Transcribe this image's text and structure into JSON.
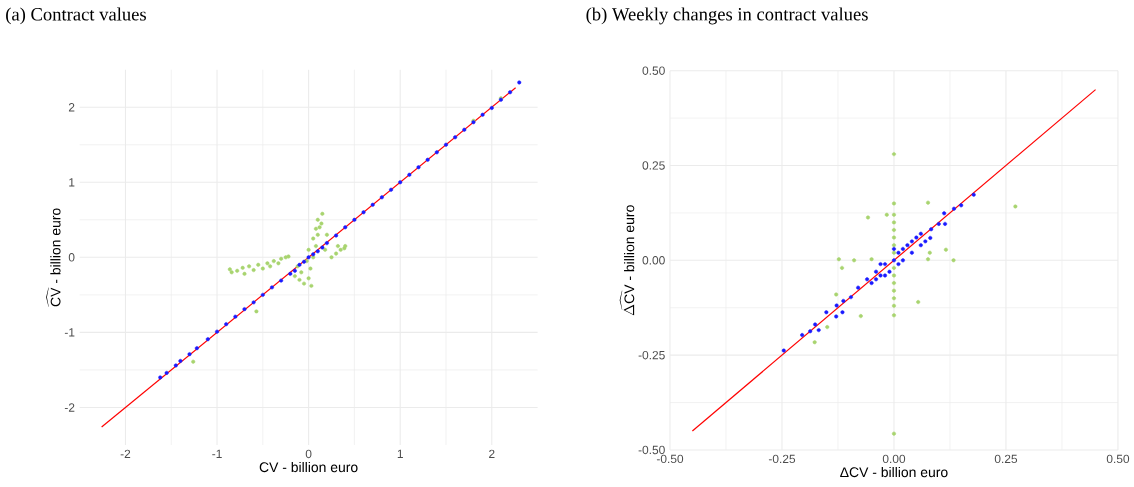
{
  "chart_data": [
    {
      "type": "scatter",
      "title": "(a) Contract values",
      "xlabel": "CV - billion euro",
      "ylabel": "\\widehat{\\mathrm{CV}}\\mbox{ - billion euro}",
      "xlim": [
        -2.5,
        2.5
      ],
      "ylim": [
        -2.5,
        2.5
      ],
      "xticks": [
        -2,
        -1,
        0,
        1,
        2
      ],
      "yticks": [
        -2,
        -1,
        0,
        1,
        2
      ],
      "grid": true,
      "series": [
        {
          "marker": "circle",
          "color": "#a8d46f",
          "x": [
            -0.86,
            -0.84,
            -0.78,
            -0.72,
            -0.7,
            -0.65,
            -0.6,
            -0.55,
            -0.5,
            -0.45,
            -0.42,
            -0.38,
            -0.33,
            -0.3,
            -0.25,
            -0.22,
            -0.15,
            -0.1,
            -0.05,
            -0.08,
            0.0,
            0.02,
            -0.02,
            0.05,
            0.0,
            0.08,
            0.05,
            0.1,
            0.12,
            0.1,
            0.15,
            0.14,
            0.08,
            0.2,
            0.18,
            -0.12,
            0.03,
            0.25,
            0.3,
            0.35,
            0.39,
            0.32,
            0.4,
            -0.57,
            -1.26,
            1.8,
            2.1
          ],
          "values": [
            -0.16,
            -0.2,
            -0.18,
            -0.14,
            -0.22,
            -0.12,
            -0.17,
            -0.1,
            -0.15,
            -0.08,
            -0.12,
            -0.05,
            -0.08,
            -0.02,
            0.0,
            0.01,
            -0.25,
            -0.3,
            -0.35,
            -0.2,
            -0.28,
            -0.15,
            -0.05,
            0.0,
            0.1,
            0.15,
            0.25,
            0.3,
            0.4,
            0.5,
            0.58,
            0.45,
            0.38,
            0.3,
            0.1,
            -0.12,
            -0.38,
            0.0,
            0.05,
            0.1,
            0.12,
            0.15,
            0.15,
            -0.72,
            -1.39,
            1.82,
            2.12
          ]
        },
        {
          "marker": "circle",
          "color": "#1a1aff",
          "x": [
            -1.62,
            -1.55,
            -1.45,
            -1.4,
            -1.3,
            -1.22,
            -1.1,
            -1.0,
            -0.9,
            -0.8,
            -0.7,
            -0.6,
            -0.5,
            -0.4,
            -0.3,
            -0.2,
            -0.15,
            -0.1,
            -0.05,
            0.0,
            0.05,
            0.1,
            0.15,
            0.2,
            0.3,
            0.4,
            0.5,
            0.6,
            0.7,
            0.8,
            0.9,
            1.0,
            1.1,
            1.2,
            1.3,
            1.4,
            1.5,
            1.6,
            1.7,
            1.8,
            1.9,
            2.0,
            2.1,
            2.2,
            2.3
          ],
          "values": [
            -1.6,
            -1.54,
            -1.44,
            -1.38,
            -1.29,
            -1.21,
            -1.09,
            -0.99,
            -0.89,
            -0.79,
            -0.69,
            -0.6,
            -0.5,
            -0.4,
            -0.31,
            -0.22,
            -0.18,
            -0.1,
            -0.06,
            0.0,
            0.04,
            0.08,
            0.13,
            0.19,
            0.29,
            0.4,
            0.5,
            0.6,
            0.7,
            0.8,
            0.9,
            1.0,
            1.1,
            1.2,
            1.3,
            1.4,
            1.5,
            1.6,
            1.7,
            1.8,
            1.9,
            1.99,
            2.1,
            2.2,
            2.33
          ]
        },
        {
          "type": "line",
          "color": "#ff0000",
          "x": [
            -2.26,
            2.26
          ],
          "values": [
            -2.26,
            2.26
          ]
        }
      ]
    },
    {
      "type": "scatter",
      "title": "(b) Weekly changes in contract values",
      "xlabel": "ΔCV - billion euro",
      "ylabel": "\\widehat{\\Delta\\mathrm{CV}}\\mbox{ - billion euro}",
      "xlim": [
        -0.5,
        0.5
      ],
      "ylim": [
        -0.5,
        0.5
      ],
      "xticks": [
        {
          "value": -0.5,
          "label": "-0.50"
        },
        {
          "value": -0.25,
          "label": "-0.25"
        },
        {
          "value": 0,
          "label": "0.00"
        },
        {
          "value": 0.25,
          "label": "0.25"
        },
        {
          "value": 0.5,
          "label": "0.50"
        }
      ],
      "yticks": [
        {
          "value": -0.5,
          "label": "-0.50"
        },
        {
          "value": -0.25,
          "label": "-0.25"
        },
        {
          "value": 0,
          "label": "0.00"
        },
        {
          "value": 0.25,
          "label": "0.25"
        },
        {
          "value": 0.5,
          "label": "0.50"
        }
      ],
      "grid": true,
      "series": [
        {
          "marker": "circle",
          "color": "#a8d46f",
          "x": [
            0,
            0,
            0.271,
            0,
            0,
            0,
            0,
            0,
            0,
            0,
            0,
            0,
            0,
            0,
            0,
            0,
            0,
            -0.123,
            -0.089,
            -0.05,
            0.076,
            0.133,
            -0.058,
            0.076,
            0.054,
            -0.074,
            -0.177,
            -0.149,
            -0.129,
            -0.116,
            0.116,
            0.08,
            -0.016
          ],
          "values": [
            0.28,
            -0.457,
            0.142,
            0.15,
            0.12,
            0.1,
            0.08,
            0.06,
            0.04,
            0.02,
            -0.02,
            -0.04,
            -0.06,
            -0.08,
            -0.1,
            -0.12,
            -0.145,
            0.003,
            0.0,
            0.003,
            0.003,
            0.0,
            0.113,
            0.152,
            -0.11,
            -0.147,
            -0.216,
            -0.176,
            -0.09,
            -0.02,
            0.028,
            0.02,
            0.12
          ]
        },
        {
          "marker": "circle",
          "color": "#1a1aff",
          "x": [
            -0.246,
            -0.205,
            -0.187,
            -0.176,
            -0.168,
            -0.151,
            -0.129,
            -0.128,
            -0.115,
            -0.113,
            -0.096,
            -0.08,
            -0.06,
            -0.05,
            -0.04,
            -0.04,
            -0.03,
            -0.03,
            -0.02,
            -0.02,
            -0.01,
            0.0,
            0.0,
            0.01,
            0.01,
            0.02,
            0.02,
            0.03,
            0.04,
            0.04,
            0.05,
            0.06,
            0.06,
            0.07,
            0.081,
            0.083,
            0.1,
            0.114,
            0.112,
            0.134,
            0.15,
            0.178
          ],
          "values": [
            -0.238,
            -0.197,
            -0.187,
            -0.169,
            -0.184,
            -0.137,
            -0.148,
            -0.119,
            -0.137,
            -0.107,
            -0.097,
            -0.072,
            -0.05,
            -0.06,
            -0.03,
            -0.05,
            -0.04,
            -0.01,
            -0.01,
            -0.04,
            -0.03,
            0.0,
            0.03,
            0.02,
            -0.01,
            0.0,
            0.03,
            0.04,
            0.02,
            0.05,
            0.06,
            0.04,
            0.07,
            0.05,
            0.059,
            0.082,
            0.096,
            0.096,
            0.124,
            0.136,
            0.145,
            0.173
          ]
        },
        {
          "type": "line",
          "color": "#ff0000",
          "x": [
            -0.45,
            0.45
          ],
          "values": [
            -0.45,
            0.45
          ]
        }
      ]
    }
  ]
}
